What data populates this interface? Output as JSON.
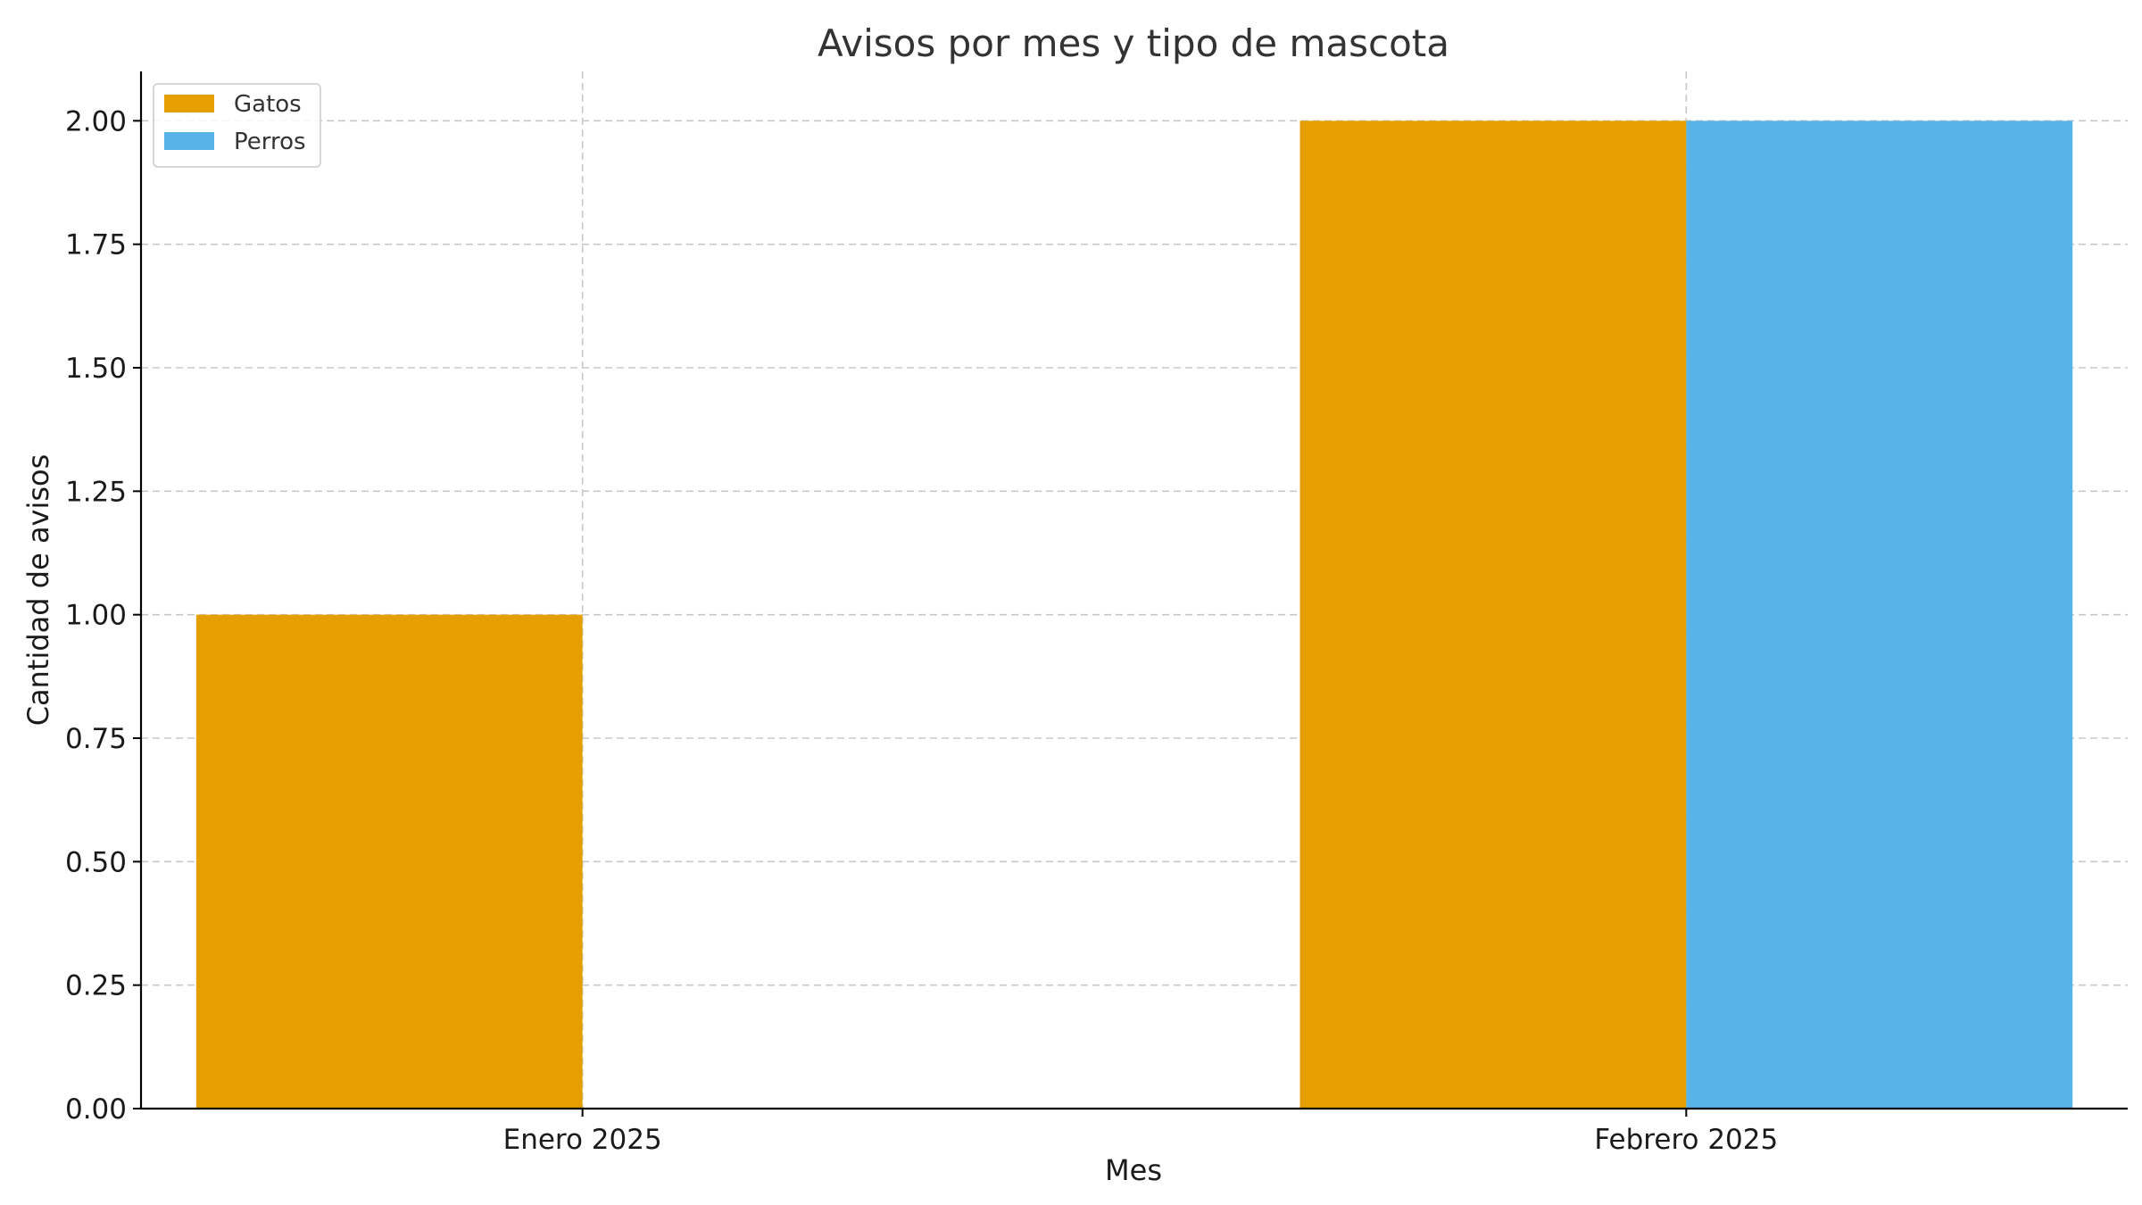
{
  "chart_data": {
    "type": "bar",
    "title": "Avisos por mes y tipo de mascota",
    "xlabel": "Mes",
    "ylabel": "Cantidad de avisos",
    "categories": [
      "Enero 2025",
      "Febrero 2025"
    ],
    "series": [
      {
        "name": "Gatos",
        "color": "#E69F00",
        "values": [
          1,
          2
        ]
      },
      {
        "name": "Perros",
        "color": "#56B4E9",
        "values": [
          0,
          2
        ]
      }
    ],
    "ylim": [
      0,
      2.1
    ],
    "yticks": [
      0.0,
      0.25,
      0.5,
      0.75,
      1.0,
      1.25,
      1.5,
      1.75,
      2.0
    ],
    "ytick_labels": [
      "0.00",
      "0.25",
      "0.50",
      "0.75",
      "1.00",
      "1.25",
      "1.50",
      "1.75",
      "2.00"
    ],
    "grid": true,
    "legend_position": "top-left"
  }
}
